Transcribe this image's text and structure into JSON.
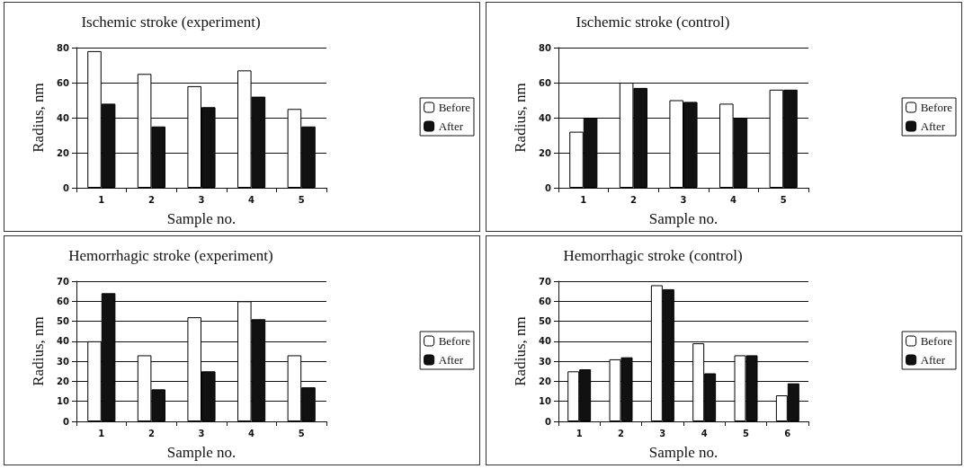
{
  "chart_data": [
    {
      "type": "bar",
      "title": "Ischemic stroke (experiment)",
      "xlabel": "Sample no.",
      "ylabel": "Radius, nm",
      "categories": [
        "1",
        "2",
        "3",
        "4",
        "5"
      ],
      "series": [
        {
          "name": "Before",
          "color": "#ffffff",
          "values": [
            78,
            65,
            58,
            67,
            45
          ]
        },
        {
          "name": "After",
          "color": "#111111",
          "values": [
            48,
            35,
            46,
            52,
            35
          ]
        }
      ],
      "ylim": [
        0,
        80
      ],
      "yticks": [
        0,
        20,
        40,
        60,
        80
      ],
      "grid": "y",
      "legend": "right"
    },
    {
      "type": "bar",
      "title": "Ischemic stroke (control)",
      "xlabel": "Sample no.",
      "ylabel": "Radius, nm",
      "categories": [
        "1",
        "2",
        "3",
        "4",
        "5"
      ],
      "series": [
        {
          "name": "Before",
          "color": "#ffffff",
          "values": [
            32,
            60,
            50,
            48,
            56
          ]
        },
        {
          "name": "After",
          "color": "#111111",
          "values": [
            40,
            57,
            49,
            40,
            56
          ]
        }
      ],
      "ylim": [
        0,
        80
      ],
      "yticks": [
        0,
        20,
        40,
        60,
        80
      ],
      "grid": "y",
      "legend": "right"
    },
    {
      "type": "bar",
      "title": "Hemorrhagic stroke (experiment)",
      "xlabel": "Sample no.",
      "ylabel": "Radius, nm",
      "categories": [
        "1",
        "2",
        "3",
        "4",
        "5"
      ],
      "series": [
        {
          "name": "Before",
          "color": "#ffffff",
          "values": [
            40,
            33,
            52,
            60,
            33
          ]
        },
        {
          "name": "After",
          "color": "#111111",
          "values": [
            64,
            16,
            25,
            51,
            17
          ]
        }
      ],
      "ylim": [
        0,
        70
      ],
      "yticks": [
        0,
        10,
        20,
        30,
        40,
        50,
        60,
        70
      ],
      "grid": "y",
      "legend": "right"
    },
    {
      "type": "bar",
      "title": "Hemorrhagic stroke (control)",
      "xlabel": "Sample no.",
      "ylabel": "Radius, nm",
      "categories": [
        "1",
        "2",
        "3",
        "4",
        "5",
        "6"
      ],
      "series": [
        {
          "name": "Before",
          "color": "#ffffff",
          "values": [
            25,
            31,
            68,
            39,
            33,
            13
          ]
        },
        {
          "name": "After",
          "color": "#111111",
          "values": [
            26,
            32,
            66,
            24,
            33,
            19
          ]
        }
      ],
      "ylim": [
        0,
        70
      ],
      "yticks": [
        0,
        10,
        20,
        30,
        40,
        50,
        60,
        70
      ],
      "grid": "y",
      "legend": "right"
    }
  ]
}
